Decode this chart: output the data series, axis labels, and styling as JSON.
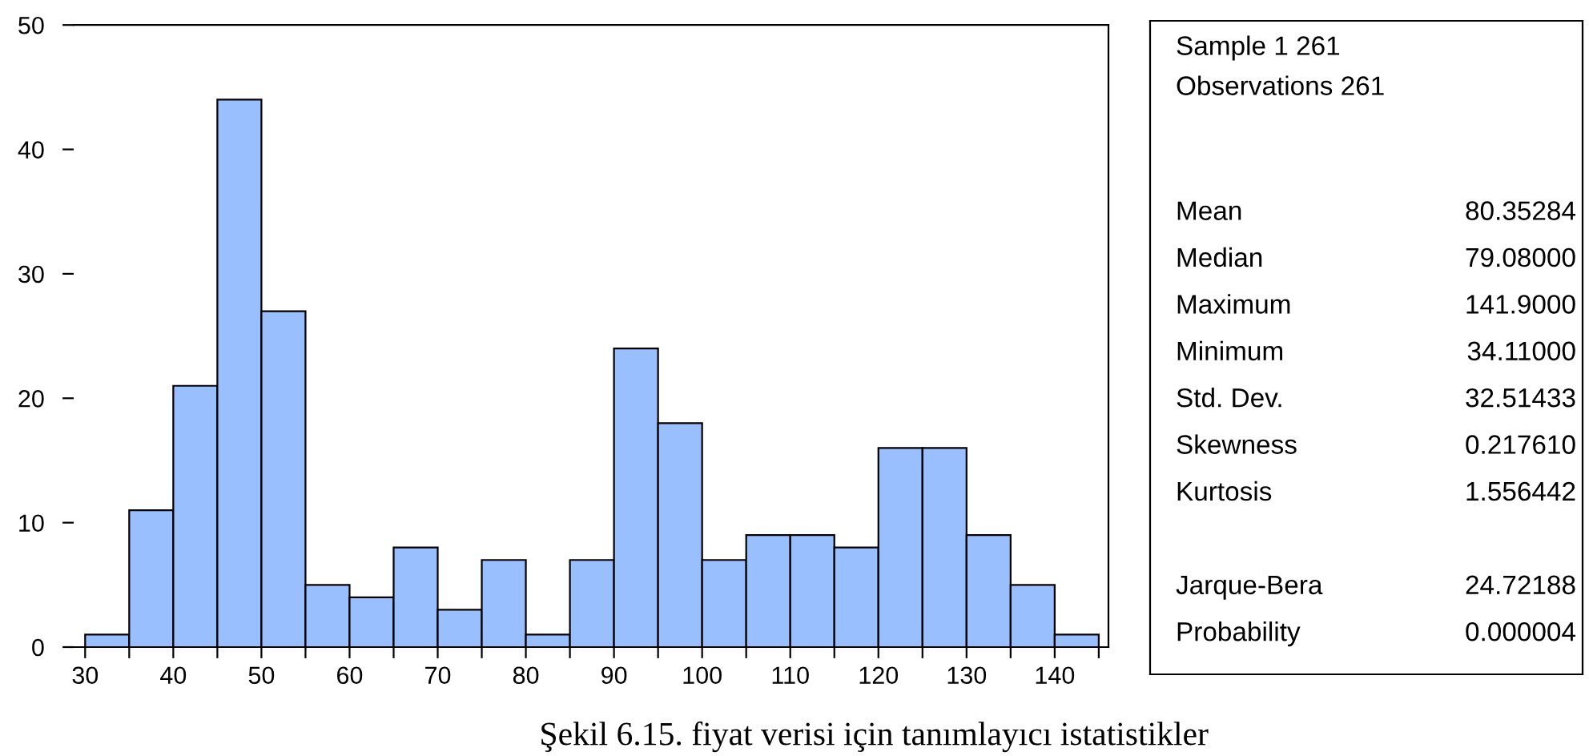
{
  "chart_data": [
    {
      "type": "histogram",
      "bins": [
        30,
        35,
        40,
        45,
        50,
        55,
        60,
        65,
        70,
        75,
        80,
        85,
        90,
        95,
        100,
        105,
        110,
        115,
        120,
        125,
        130,
        135,
        140,
        145
      ],
      "values": [
        1,
        11,
        21,
        44,
        27,
        5,
        4,
        8,
        3,
        7,
        1,
        7,
        24,
        18,
        7,
        9,
        9,
        8,
        16,
        16,
        9,
        5,
        1
      ],
      "color": "#99bfff",
      "xlim": [
        28.7,
        146.1
      ],
      "ylim": [
        0,
        50
      ],
      "xticks": [
        30,
        {
          "value": 35,
          "label": null
        },
        40,
        {
          "value": 45,
          "label": null
        },
        50,
        {
          "value": 55,
          "label": null
        },
        60,
        {
          "value": 65,
          "label": null
        },
        70,
        {
          "value": 75,
          "label": null
        },
        80,
        {
          "value": 85,
          "label": null
        },
        90,
        {
          "value": 95,
          "label": null
        },
        100,
        {
          "value": 105,
          "label": null
        },
        110,
        {
          "value": 115,
          "label": null
        },
        120,
        {
          "value": 125,
          "label": null
        },
        130,
        {
          "value": 135,
          "label": null
        },
        140,
        {
          "value": 145,
          "label": null
        }
      ],
      "yticks": [
        0,
        10,
        20,
        30,
        40,
        50
      ],
      "grid": false,
      "annotations": [
        "Şekil 6.15. fiyat verisi için tanımlayıcı istatistikler"
      ]
    },
    {
      "type": "other",
      "annotations": [
        "Sample 1 261",
        "Observations 261"
      ],
      "categories": [
        "Mean",
        "Median",
        "Maximum",
        "Minimum",
        "Std. Dev.",
        "Skewness",
        "Kurtosis",
        null,
        "Jarque-Bera",
        "Probability"
      ],
      "value_labels": [
        "80.35284",
        "79.08000",
        "141.9000",
        "34.11000",
        "32.51433",
        "0.217610",
        "1.556442",
        null,
        "24.72188",
        "0.000004"
      ]
    }
  ]
}
